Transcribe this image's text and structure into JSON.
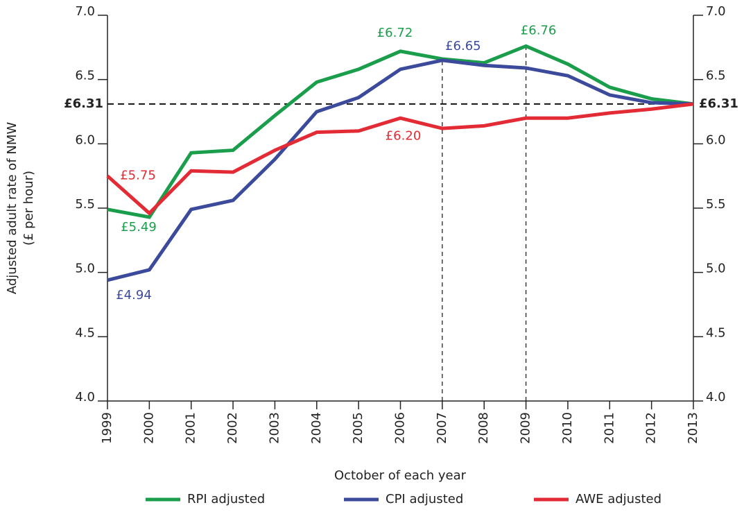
{
  "chart_data": {
    "type": "line",
    "y_label": [
      "Adjusted adult rate of NMW",
      "(£ per hour)"
    ],
    "x_label": "October of each year",
    "categories": [
      "1999",
      "2000",
      "2001",
      "2002",
      "2003",
      "2004",
      "2005",
      "2006",
      "2007",
      "2008",
      "2009",
      "2010",
      "2011",
      "2012",
      "2013"
    ],
    "series": [
      {
        "name": "RPI adjusted",
        "color": "#1a9e4b",
        "values": [
          5.49,
          5.43,
          5.93,
          5.95,
          6.22,
          6.48,
          6.58,
          6.72,
          6.66,
          6.63,
          6.76,
          6.62,
          6.44,
          6.35,
          6.31
        ],
        "value_labels": [
          "£5.49",
          null,
          null,
          null,
          null,
          null,
          null,
          "£6.72",
          null,
          null,
          "£6.76",
          null,
          null,
          null,
          null
        ]
      },
      {
        "name": "CPI adjusted",
        "color": "#3c4a9c",
        "values": [
          4.94,
          5.02,
          5.49,
          5.56,
          5.88,
          6.25,
          6.36,
          6.58,
          6.65,
          6.61,
          6.59,
          6.53,
          6.38,
          6.32,
          6.31
        ],
        "value_labels": [
          "£4.94",
          null,
          null,
          null,
          null,
          null,
          null,
          null,
          "£6.65",
          null,
          null,
          null,
          null,
          null,
          null
        ]
      },
      {
        "name": "AWE adjusted",
        "color": "#e32b35",
        "values": [
          5.75,
          5.46,
          5.79,
          5.78,
          5.95,
          6.09,
          6.1,
          6.2,
          6.12,
          6.14,
          6.2,
          6.2,
          6.24,
          6.27,
          6.31
        ],
        "value_labels": [
          "£5.75",
          null,
          null,
          null,
          null,
          null,
          null,
          "£6.20",
          null,
          null,
          null,
          null,
          null,
          null,
          null
        ]
      }
    ],
    "ylim": [
      4,
      7
    ],
    "yticks": [
      {
        "value": 4,
        "label": "4.0"
      },
      {
        "value": 4.5,
        "label": "4.5"
      },
      {
        "value": 5,
        "label": "5.0"
      },
      {
        "value": 5.5,
        "label": "5.5"
      },
      {
        "value": 6,
        "label": "6.0"
      },
      {
        "value": 6.5,
        "label": "6.5"
      },
      {
        "value": 7,
        "label": "7.0"
      }
    ],
    "reference_line": {
      "value": 6.31,
      "label": "£6.31"
    },
    "vlines": [
      "2007",
      "2009"
    ]
  }
}
